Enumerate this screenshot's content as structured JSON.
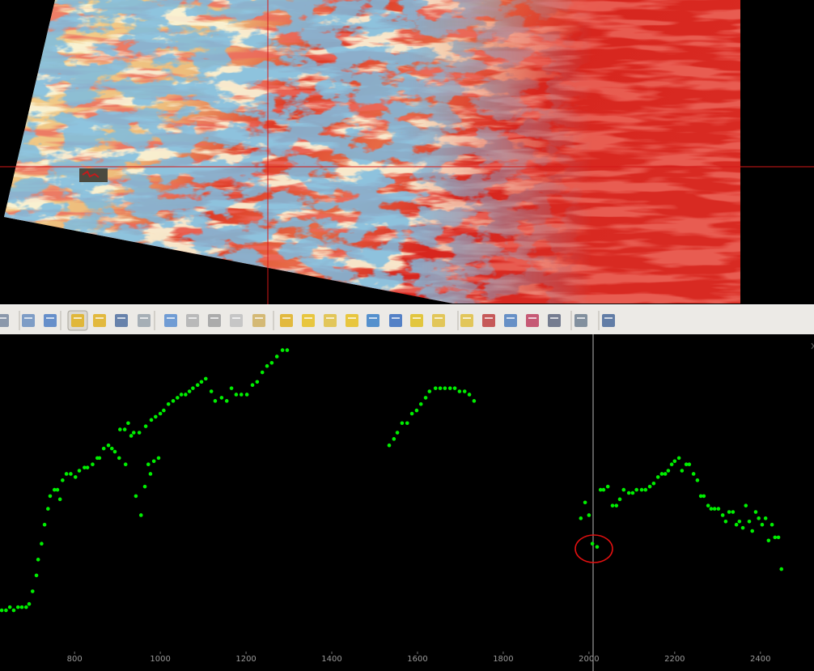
{
  "chart_data": {
    "type": "scatter",
    "color": "#00ee00",
    "xlim": [
      626,
      2525
    ],
    "ylim": [
      0,
      100
    ],
    "xticks": [
      800,
      1000,
      1200,
      1400,
      1600,
      1800,
      2000,
      2200,
      2400
    ],
    "x": [
      630,
      640,
      649,
      658,
      668,
      677,
      687,
      694,
      702,
      711,
      715,
      723,
      730,
      738,
      743,
      753,
      760,
      766,
      772,
      781,
      791,
      802,
      811,
      823,
      830,
      842,
      853,
      858,
      868,
      879,
      887,
      894,
      904,
      906,
      917,
      919,
      925,
      932,
      938,
      943,
      951,
      955,
      964,
      966,
      972,
      977,
      979,
      985,
      989,
      996,
      1000,
      1008,
      1019,
      1030,
      1040,
      1049,
      1059,
      1068,
      1076,
      1087,
      1096,
      1106,
      1119,
      1128,
      1143,
      1155,
      1166,
      1177,
      1189,
      1202,
      1215,
      1226,
      1238,
      1249,
      1260,
      1272,
      1285,
      1296,
      1534,
      1545,
      1553,
      1564,
      1576,
      1587,
      1598,
      1608,
      1619,
      1628,
      1642,
      1653,
      1664,
      1676,
      1687,
      1698,
      1710,
      1721,
      1732,
      1981,
      1991,
      2000,
      2008,
      2019,
      2027,
      2034,
      2044,
      2055,
      2064,
      2072,
      2081,
      2093,
      2102,
      2111,
      2123,
      2132,
      2142,
      2151,
      2161,
      2170,
      2178,
      2185,
      2193,
      2200,
      2210,
      2217,
      2227,
      2234,
      2244,
      2253,
      2261,
      2268,
      2278,
      2285,
      2293,
      2302,
      2312,
      2319,
      2327,
      2336,
      2344,
      2351,
      2359,
      2366,
      2374,
      2381,
      2389,
      2396,
      2404,
      2412,
      2419,
      2427,
      2434,
      2442,
      2449
    ],
    "values": [
      13,
      13,
      14,
      13,
      14,
      14,
      14,
      15,
      19,
      24,
      29,
      34,
      40,
      45,
      49,
      51,
      51,
      48,
      54,
      56,
      56,
      55,
      57,
      58,
      58,
      59,
      61,
      61,
      64,
      65,
      64,
      63,
      61,
      70,
      70,
      59,
      72,
      68,
      69,
      49,
      69,
      43,
      52,
      71,
      59,
      56,
      73,
      60,
      74,
      61,
      75,
      76,
      78,
      79,
      80,
      81,
      81,
      82,
      83,
      84,
      85,
      86,
      82,
      79,
      80,
      79,
      83,
      81,
      81,
      81,
      84,
      85,
      88,
      90,
      91,
      93,
      95,
      95,
      65,
      67,
      69,
      72,
      72,
      75,
      76,
      78,
      80,
      82,
      83,
      83,
      83,
      83,
      83,
      82,
      82,
      81,
      79,
      42,
      47,
      43,
      34,
      33,
      51,
      51,
      52,
      46,
      46,
      48,
      51,
      50,
      50,
      51,
      51,
      51,
      52,
      53,
      55,
      56,
      56,
      57,
      59,
      60,
      61,
      57,
      59,
      59,
      56,
      54,
      49,
      49,
      46,
      45,
      45,
      45,
      43,
      41,
      44,
      44,
      40,
      41,
      39,
      46,
      41,
      38,
      44,
      42,
      40,
      42,
      35,
      40,
      36,
      36,
      26
    ]
  }
}
